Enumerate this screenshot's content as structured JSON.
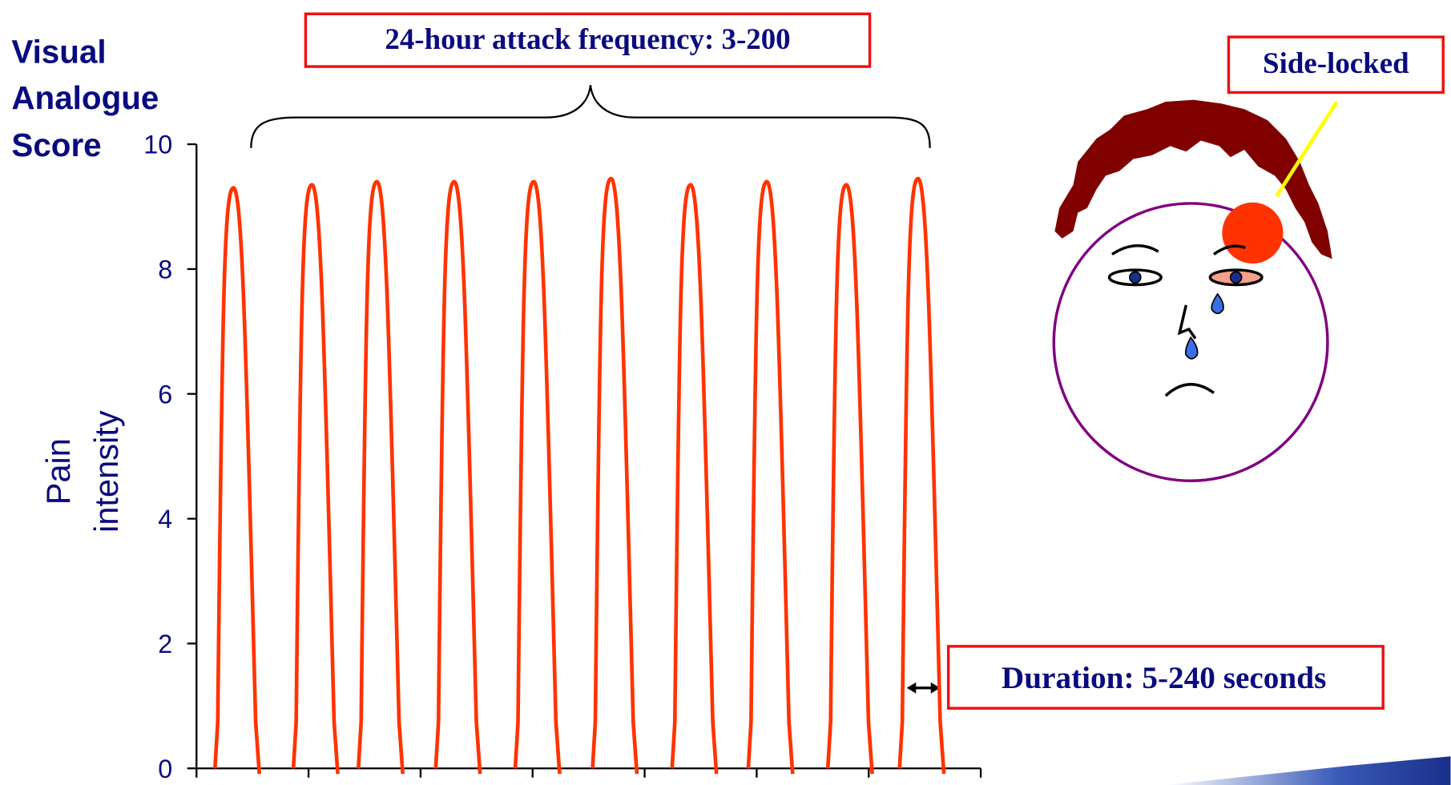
{
  "chart_data": {
    "type": "spikes",
    "title_lines": [
      "Visual",
      "Analogue",
      "Score"
    ],
    "ylabel": [
      "Pain",
      "intensity"
    ],
    "annotations": {
      "frequency": "24-hour attack frequency: 3-200",
      "duration": "Duration: 5-240 seconds",
      "side": "Side-locked"
    },
    "x": [
      0.33,
      1.03,
      1.61,
      2.3,
      3.01,
      3.7,
      4.41,
      5.09,
      5.8,
      6.44
    ],
    "values": [
      9.3,
      9.35,
      9.4,
      9.4,
      9.4,
      9.45,
      9.35,
      9.4,
      9.35,
      9.45
    ],
    "color": "#ff3300",
    "xlim": [
      0,
      7
    ],
    "ylim": [
      0,
      10
    ],
    "yticks": [
      0,
      2,
      4,
      6,
      8,
      10
    ]
  }
}
